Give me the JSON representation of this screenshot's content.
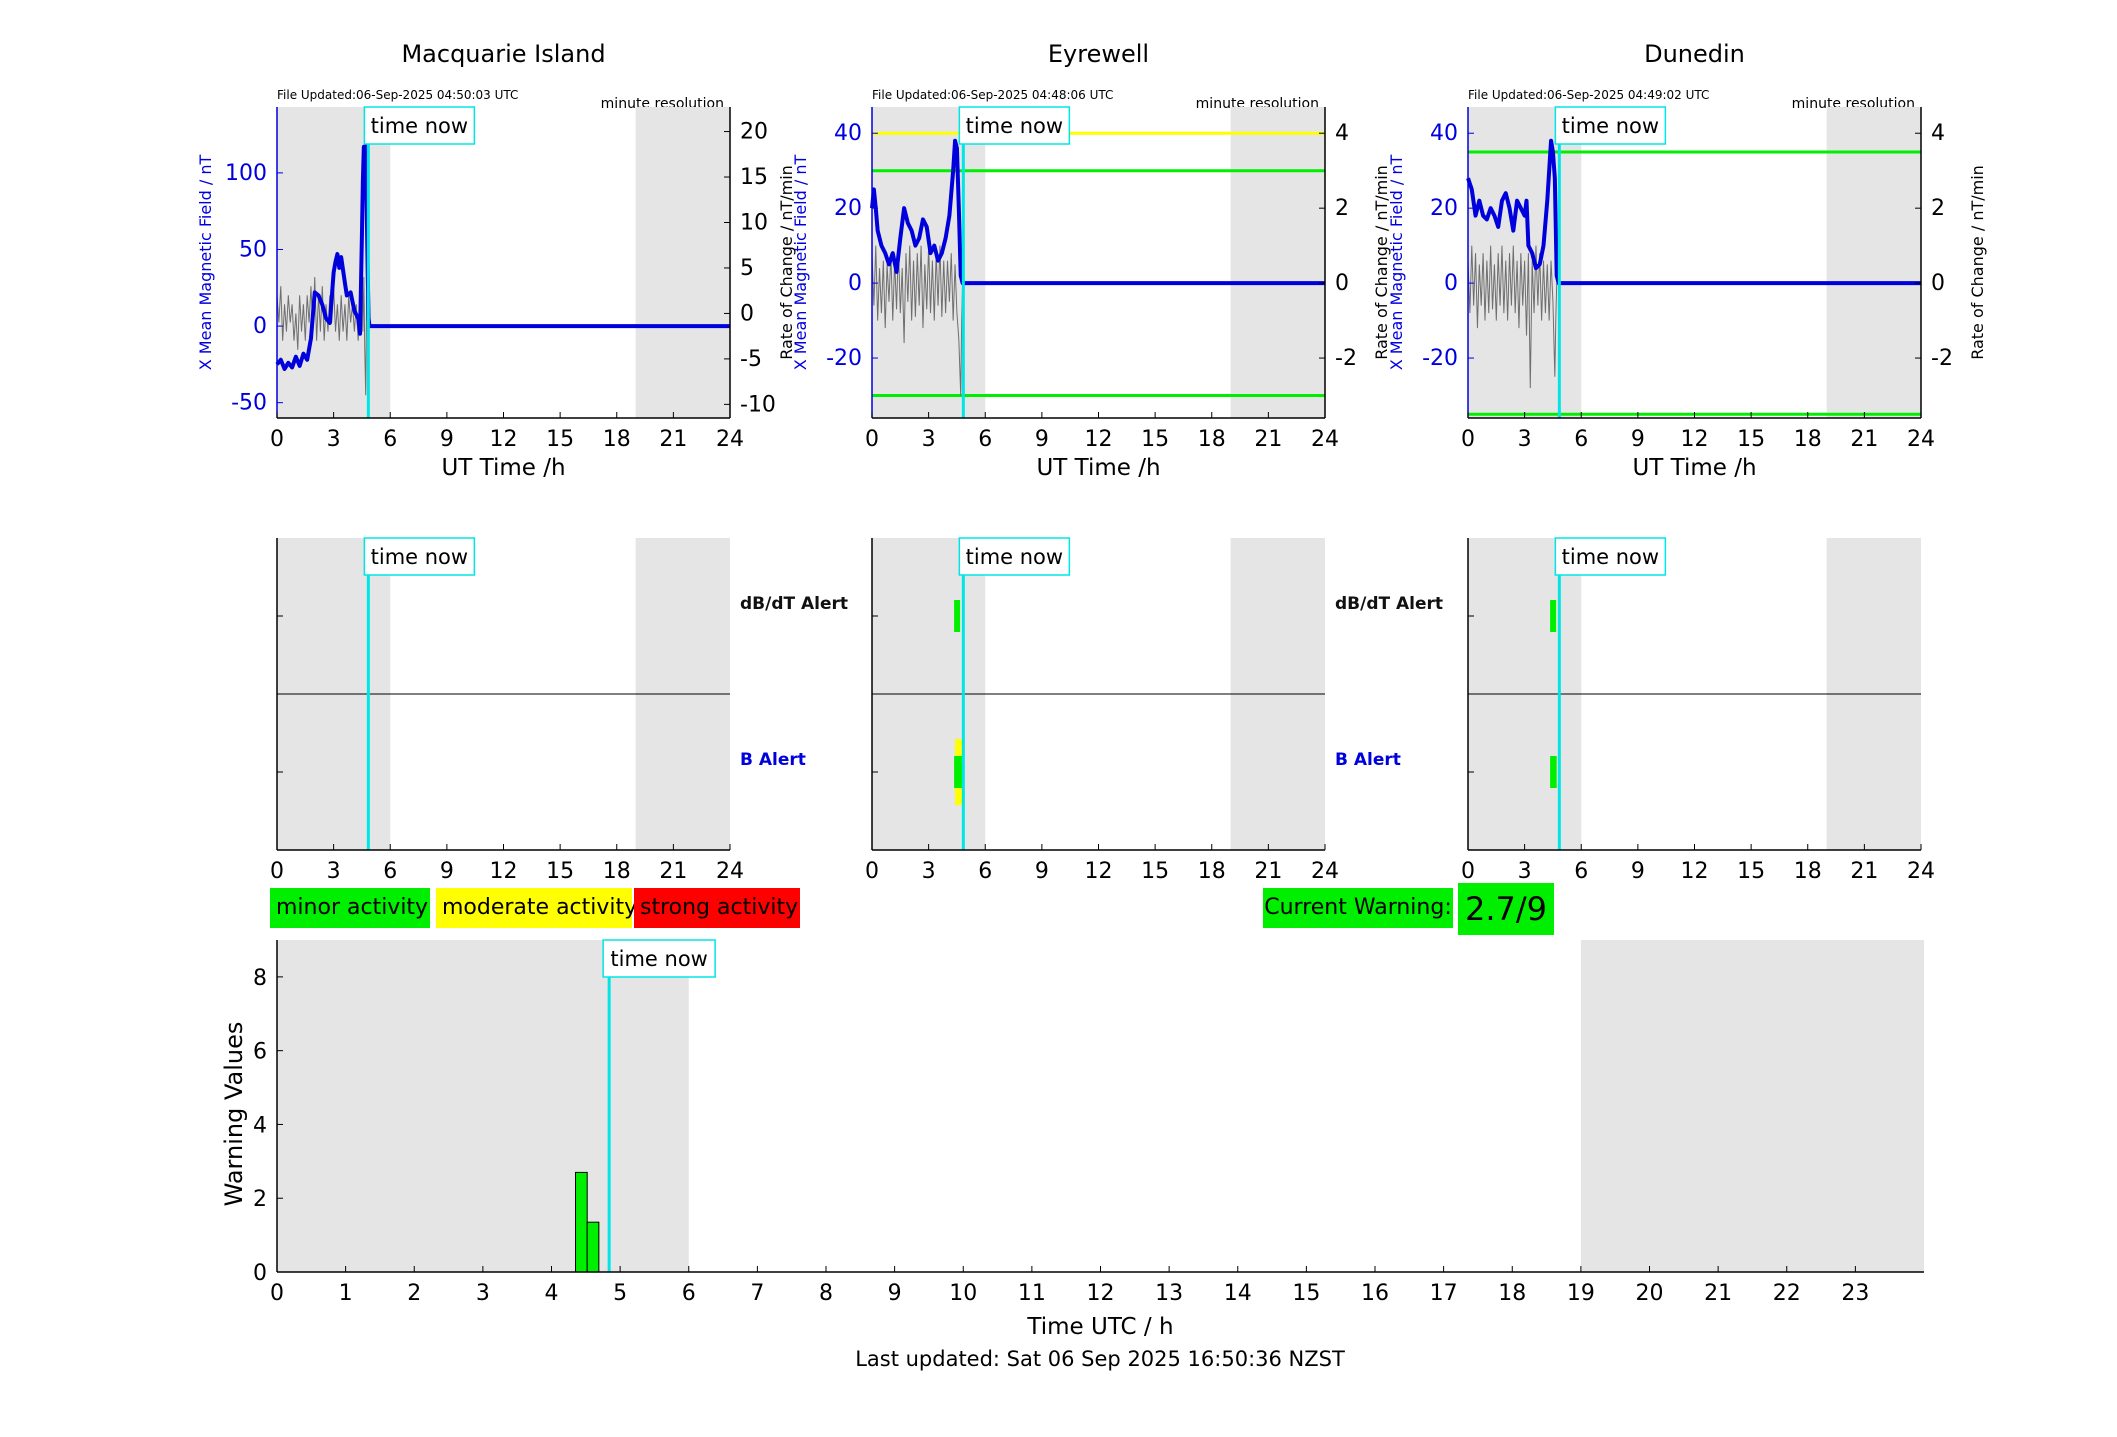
{
  "colors": {
    "shade": "#e5e5e5",
    "mag": "#0000dd",
    "roc": "#6f6f6f",
    "now": "#00e6e6",
    "minor": "#00ee00",
    "moderate": "#ffff00",
    "strong": "#ff0000",
    "threshold_yellow": "#ffff00",
    "threshold_green": "#00ee00",
    "bar": "#00ee00"
  },
  "time_now_h": 4.84,
  "time_now_label": "time now",
  "panels": [
    {
      "title": "Macquarie Island",
      "file_updated": "File Updated:06-Sep-2025 04:50:03 UTC",
      "resolution": "minute resolution",
      "ylabel_left": "X Mean Magnetic Field / nT",
      "ylabel_right": "Rate of Change / nT/min",
      "xlabel": "UT Time /h",
      "ylim_left": [
        -60,
        143
      ],
      "ylim_right": [
        -11.5,
        22.7
      ],
      "yticks_left": [
        -50,
        0,
        50,
        100
      ],
      "yticks_right": [
        -10,
        -5,
        0,
        5,
        10,
        15,
        20
      ],
      "now_h": 4.84,
      "shade": [
        [
          0,
          6
        ],
        [
          19,
          24
        ]
      ],
      "thresholds": [],
      "mag_series": [
        [
          0.0,
          -25
        ],
        [
          0.2,
          -22
        ],
        [
          0.4,
          -28
        ],
        [
          0.6,
          -24
        ],
        [
          0.8,
          -27
        ],
        [
          1.0,
          -20
        ],
        [
          1.2,
          -26
        ],
        [
          1.4,
          -18
        ],
        [
          1.6,
          -22
        ],
        [
          1.8,
          -8
        ],
        [
          2.0,
          22
        ],
        [
          2.2,
          20
        ],
        [
          2.4,
          14
        ],
        [
          2.6,
          5
        ],
        [
          2.8,
          2
        ],
        [
          3.0,
          35
        ],
        [
          3.1,
          42
        ],
        [
          3.2,
          47
        ],
        [
          3.3,
          38
        ],
        [
          3.4,
          45
        ],
        [
          3.6,
          28
        ],
        [
          3.7,
          20
        ],
        [
          3.9,
          22
        ],
        [
          4.1,
          10
        ],
        [
          4.3,
          5
        ],
        [
          4.4,
          -5
        ],
        [
          4.5,
          60
        ],
        [
          4.55,
          95
        ],
        [
          4.6,
          117
        ],
        [
          4.65,
          105
        ],
        [
          4.7,
          118
        ],
        [
          4.75,
          80
        ],
        [
          4.8,
          40
        ],
        [
          4.85,
          5
        ],
        [
          4.9,
          0
        ],
        [
          24,
          0
        ]
      ],
      "roc_series": [
        [
          0.0,
          2
        ],
        [
          0.1,
          -1
        ],
        [
          0.2,
          3
        ],
        [
          0.3,
          -3
        ],
        [
          0.4,
          1
        ],
        [
          0.5,
          -2
        ],
        [
          0.6,
          2
        ],
        [
          0.7,
          -1
        ],
        [
          0.8,
          1
        ],
        [
          0.9,
          -3
        ],
        [
          1.0,
          0
        ],
        [
          1.1,
          -4
        ],
        [
          1.2,
          2
        ],
        [
          1.3,
          -2
        ],
        [
          1.4,
          1
        ],
        [
          1.5,
          -3
        ],
        [
          1.6,
          2
        ],
        [
          1.7,
          -1
        ],
        [
          1.8,
          3
        ],
        [
          1.9,
          -2
        ],
        [
          2.0,
          4
        ],
        [
          2.1,
          -3
        ],
        [
          2.2,
          2
        ],
        [
          2.3,
          -2
        ],
        [
          2.4,
          3
        ],
        [
          2.5,
          -3
        ],
        [
          2.6,
          1
        ],
        [
          2.7,
          -2
        ],
        [
          2.8,
          2
        ],
        [
          2.9,
          -1
        ],
        [
          3.0,
          3
        ],
        [
          3.1,
          -2
        ],
        [
          3.2,
          1
        ],
        [
          3.3,
          -3
        ],
        [
          3.4,
          2
        ],
        [
          3.5,
          -2
        ],
        [
          3.6,
          1
        ],
        [
          3.7,
          -3
        ],
        [
          3.8,
          2
        ],
        [
          3.9,
          -1
        ],
        [
          4.0,
          1
        ],
        [
          4.1,
          -2
        ],
        [
          4.2,
          1
        ],
        [
          4.3,
          -3
        ],
        [
          4.4,
          2
        ],
        [
          4.5,
          6
        ],
        [
          4.55,
          -2
        ],
        [
          4.6,
          4
        ],
        [
          4.65,
          -4
        ],
        [
          4.7,
          -9
        ],
        [
          4.75,
          2
        ],
        [
          4.8,
          -3
        ],
        [
          4.84,
          0
        ]
      ],
      "dbdt_alerts": [],
      "b_alerts": []
    },
    {
      "title": "Eyrewell",
      "file_updated": "File Updated:06-Sep-2025 04:48:06 UTC",
      "resolution": "minute resolution",
      "ylabel_left": "X Mean Magnetic Field / nT",
      "ylabel_right": "Rate of Change / nT/min",
      "xlabel": "UT Time /h",
      "ylim_left": [
        -36,
        47
      ],
      "ylim_right": [
        -3.6,
        4.7
      ],
      "yticks_left": [
        -20,
        0,
        20,
        40
      ],
      "yticks_right": [
        -2,
        0,
        2,
        4
      ],
      "now_h": 4.84,
      "shade": [
        [
          0,
          6
        ],
        [
          19,
          24
        ]
      ],
      "thresholds": [
        {
          "axis": "right",
          "value": 4,
          "color": "#ffff00"
        },
        {
          "axis": "right",
          "value": 3,
          "color": "#00ee00"
        },
        {
          "axis": "right",
          "value": -3,
          "color": "#00ee00"
        }
      ],
      "mag_series": [
        [
          0.0,
          20
        ],
        [
          0.1,
          25
        ],
        [
          0.2,
          20
        ],
        [
          0.3,
          14
        ],
        [
          0.5,
          10
        ],
        [
          0.7,
          8
        ],
        [
          0.9,
          5
        ],
        [
          1.1,
          8
        ],
        [
          1.3,
          3
        ],
        [
          1.5,
          12
        ],
        [
          1.7,
          20
        ],
        [
          1.9,
          16
        ],
        [
          2.1,
          14
        ],
        [
          2.3,
          10
        ],
        [
          2.5,
          12
        ],
        [
          2.7,
          17
        ],
        [
          2.9,
          15
        ],
        [
          3.1,
          8
        ],
        [
          3.3,
          10
        ],
        [
          3.5,
          6
        ],
        [
          3.7,
          8
        ],
        [
          3.9,
          12
        ],
        [
          4.1,
          18
        ],
        [
          4.3,
          30
        ],
        [
          4.4,
          38
        ],
        [
          4.5,
          36
        ],
        [
          4.6,
          20
        ],
        [
          4.7,
          2
        ],
        [
          4.8,
          0
        ],
        [
          24,
          0
        ]
      ],
      "roc_series": [
        [
          0.0,
          0.8
        ],
        [
          0.1,
          -0.6
        ],
        [
          0.2,
          1
        ],
        [
          0.3,
          -1
        ],
        [
          0.4,
          0.4
        ],
        [
          0.5,
          -0.8
        ],
        [
          0.6,
          0.6
        ],
        [
          0.7,
          -1.2
        ],
        [
          0.8,
          0.5
        ],
        [
          0.9,
          -0.5
        ],
        [
          1.0,
          0.8
        ],
        [
          1.1,
          -1
        ],
        [
          1.2,
          0.6
        ],
        [
          1.3,
          -0.7
        ],
        [
          1.4,
          1
        ],
        [
          1.5,
          -0.8
        ],
        [
          1.6,
          0.4
        ],
        [
          1.7,
          -1.6
        ],
        [
          1.8,
          0.8
        ],
        [
          1.9,
          -0.5
        ],
        [
          2.0,
          1
        ],
        [
          2.1,
          -1
        ],
        [
          2.2,
          0.6
        ],
        [
          2.3,
          -0.9
        ],
        [
          2.4,
          0.8
        ],
        [
          2.5,
          -0.6
        ],
        [
          2.6,
          1
        ],
        [
          2.7,
          -1.2
        ],
        [
          2.8,
          0.5
        ],
        [
          2.9,
          -0.7
        ],
        [
          3.0,
          1
        ],
        [
          3.1,
          -0.8
        ],
        [
          3.2,
          0.6
        ],
        [
          3.3,
          -1
        ],
        [
          3.4,
          0.8
        ],
        [
          3.5,
          -0.6
        ],
        [
          3.6,
          1
        ],
        [
          3.7,
          -0.9
        ],
        [
          3.8,
          0.6
        ],
        [
          3.9,
          -0.8
        ],
        [
          4.0,
          0.6
        ],
        [
          4.1,
          -0.5
        ],
        [
          4.2,
          0.8
        ],
        [
          4.3,
          -1
        ],
        [
          4.4,
          0.5
        ],
        [
          4.5,
          -0.8
        ],
        [
          4.6,
          -1.5
        ],
        [
          4.7,
          -3
        ],
        [
          4.75,
          -1
        ],
        [
          4.8,
          0
        ]
      ],
      "dbdt_alerts": [
        {
          "t0": 4.35,
          "t1": 4.6,
          "lo": 0.22,
          "hi": 0.78,
          "color": "#00ee00"
        }
      ],
      "b_alerts": [
        {
          "t0": 4.4,
          "t1": 4.85,
          "lo": 0.0,
          "hi": 1.0,
          "color": "#ffff00"
        },
        {
          "t0": 4.35,
          "t1": 4.85,
          "lo": 0.22,
          "hi": 0.78,
          "color": "#00ee00"
        }
      ]
    },
    {
      "title": "Dunedin",
      "file_updated": "File Updated:06-Sep-2025 04:49:02 UTC",
      "resolution": "minute resolution",
      "ylabel_left": "X Mean Magnetic Field / nT",
      "ylabel_right": "Rate of Change / nT/min",
      "xlabel": "UT Time /h",
      "ylim_left": [
        -36,
        47
      ],
      "ylim_right": [
        -3.6,
        4.7
      ],
      "yticks_left": [
        -20,
        0,
        20,
        40
      ],
      "yticks_right": [
        -2,
        0,
        2,
        4
      ],
      "now_h": 4.84,
      "shade": [
        [
          0,
          6
        ],
        [
          19,
          24
        ]
      ],
      "thresholds": [
        {
          "axis": "right",
          "value": 3.5,
          "color": "#00ee00"
        },
        {
          "axis": "right",
          "value": -3.5,
          "color": "#00ee00"
        }
      ],
      "mag_series": [
        [
          0.0,
          28
        ],
        [
          0.2,
          25
        ],
        [
          0.4,
          18
        ],
        [
          0.6,
          22
        ],
        [
          0.8,
          18
        ],
        [
          1.0,
          17
        ],
        [
          1.2,
          20
        ],
        [
          1.4,
          18
        ],
        [
          1.6,
          15
        ],
        [
          1.8,
          22
        ],
        [
          2.0,
          24
        ],
        [
          2.2,
          20
        ],
        [
          2.4,
          14
        ],
        [
          2.6,
          22
        ],
        [
          2.8,
          20
        ],
        [
          3.0,
          18
        ],
        [
          3.1,
          22
        ],
        [
          3.2,
          10
        ],
        [
          3.4,
          8
        ],
        [
          3.6,
          4
        ],
        [
          3.8,
          5
        ],
        [
          4.0,
          10
        ],
        [
          4.2,
          22
        ],
        [
          4.3,
          30
        ],
        [
          4.4,
          38
        ],
        [
          4.5,
          35
        ],
        [
          4.6,
          28
        ],
        [
          4.7,
          2
        ],
        [
          4.8,
          0
        ],
        [
          24,
          0
        ]
      ],
      "roc_series": [
        [
          0.0,
          0.6
        ],
        [
          0.1,
          -0.8
        ],
        [
          0.2,
          1
        ],
        [
          0.3,
          -0.6
        ],
        [
          0.4,
          0.8
        ],
        [
          0.5,
          -1.2
        ],
        [
          0.6,
          0.5
        ],
        [
          0.7,
          -0.6
        ],
        [
          0.8,
          0.8
        ],
        [
          0.9,
          -1
        ],
        [
          1.0,
          0.6
        ],
        [
          1.1,
          -0.8
        ],
        [
          1.2,
          1
        ],
        [
          1.3,
          -0.7
        ],
        [
          1.4,
          0.5
        ],
        [
          1.5,
          -1
        ],
        [
          1.6,
          0.8
        ],
        [
          1.7,
          -0.6
        ],
        [
          1.8,
          1
        ],
        [
          1.9,
          -0.8
        ],
        [
          2.0,
          0.6
        ],
        [
          2.1,
          -1
        ],
        [
          2.2,
          0.8
        ],
        [
          2.3,
          -0.6
        ],
        [
          2.4,
          1
        ],
        [
          2.5,
          -0.8
        ],
        [
          2.6,
          0.6
        ],
        [
          2.7,
          -1.2
        ],
        [
          2.8,
          0.8
        ],
        [
          2.9,
          -0.6
        ],
        [
          3.0,
          0.6
        ],
        [
          3.1,
          -1.4
        ],
        [
          3.2,
          0.8
        ],
        [
          3.3,
          -2.8
        ],
        [
          3.4,
          0.6
        ],
        [
          3.5,
          -0.8
        ],
        [
          3.6,
          1
        ],
        [
          3.7,
          -0.6
        ],
        [
          3.8,
          0.8
        ],
        [
          3.9,
          -1
        ],
        [
          4.0,
          0.6
        ],
        [
          4.1,
          -0.8
        ],
        [
          4.2,
          0.5
        ],
        [
          4.3,
          -1
        ],
        [
          4.4,
          0.6
        ],
        [
          4.5,
          -0.5
        ],
        [
          4.6,
          -2.5
        ],
        [
          4.65,
          -1
        ],
        [
          4.7,
          0
        ]
      ],
      "dbdt_alerts": [
        {
          "t0": 4.35,
          "t1": 4.6,
          "lo": 0.22,
          "hi": 0.78,
          "color": "#00ee00"
        }
      ],
      "b_alerts": [
        {
          "t0": 4.35,
          "t1": 4.7,
          "lo": 0.22,
          "hi": 0.78,
          "color": "#00ee00"
        }
      ]
    }
  ],
  "alert_rows": {
    "dbdt_label": "dB/dT Alert",
    "b_label": "B Alert",
    "dbdt_color": "#111111",
    "b_color": "#0000dd"
  },
  "legend": {
    "minor": "minor activity",
    "moderate": "moderate activity",
    "strong": "strong activity"
  },
  "current_warning": {
    "label": "Current Warning:",
    "value": "2.7/9"
  },
  "chart_data": {
    "type": "bar",
    "xlabel": "Time UTC / h",
    "ylabel": "Warning Values",
    "xlim": [
      0,
      24
    ],
    "ylim": [
      0,
      9
    ],
    "xticks": [
      0,
      1,
      2,
      3,
      4,
      5,
      6,
      7,
      8,
      9,
      10,
      11,
      12,
      13,
      14,
      15,
      16,
      17,
      18,
      19,
      20,
      21,
      22,
      23
    ],
    "yticks": [
      0,
      2,
      4,
      6,
      8
    ],
    "shade": [
      [
        0,
        6
      ],
      [
        19,
        24
      ]
    ],
    "bars": [
      {
        "x0": 4.35,
        "x1": 4.52,
        "value": 2.7
      },
      {
        "x0": 4.52,
        "x1": 4.69,
        "value": 1.35
      }
    ],
    "now_h": 4.84
  },
  "footer": "Last updated: Sat 06 Sep 2025 16:50:36 NZST"
}
